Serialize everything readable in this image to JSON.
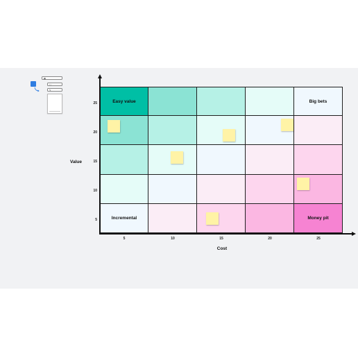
{
  "axes": {
    "x_label": "Cost",
    "y_label": "Value",
    "x_ticks": [
      "5",
      "10",
      "15",
      "20",
      "25"
    ],
    "y_ticks": [
      "25",
      "20",
      "15",
      "10",
      "5"
    ]
  },
  "matrix": {
    "rows": [
      [
        {
          "label": "Easy value",
          "color": "#00bfa5"
        },
        {
          "label": "",
          "color": "#8be3d4"
        },
        {
          "label": "",
          "color": "#b6f1e6"
        },
        {
          "label": "",
          "color": "#e5fcf8"
        },
        {
          "label": "Big bets",
          "color": "#f0f8fe"
        }
      ],
      [
        {
          "label": "",
          "color": "#8be3d4"
        },
        {
          "label": "",
          "color": "#b6f1e6"
        },
        {
          "label": "",
          "color": "#e5fcf8"
        },
        {
          "label": "",
          "color": "#f0f8fe"
        },
        {
          "label": "",
          "color": "#fbedf6"
        }
      ],
      [
        {
          "label": "",
          "color": "#b6f1e6"
        },
        {
          "label": "",
          "color": "#e5fcf8"
        },
        {
          "label": "",
          "color": "#f0f8fe"
        },
        {
          "label": "",
          "color": "#fbedf6"
        },
        {
          "label": "",
          "color": "#fdd6ee"
        }
      ],
      [
        {
          "label": "",
          "color": "#e5fcf8"
        },
        {
          "label": "",
          "color": "#f0f8fe"
        },
        {
          "label": "",
          "color": "#fbedf6"
        },
        {
          "label": "",
          "color": "#fdd6ee"
        },
        {
          "label": "",
          "color": "#fbb7e2"
        }
      ],
      [
        {
          "label": "Incremental",
          "color": "#f0f8fe"
        },
        {
          "label": "",
          "color": "#fbedf6"
        },
        {
          "label": "",
          "color": "#fdd6ee"
        },
        {
          "label": "",
          "color": "#fbb7e2"
        },
        {
          "label": "Money pit",
          "color": "#f683d2"
        }
      ]
    ]
  },
  "sticky_color": "#fff3a6",
  "tips": {
    "instruction_text": "",
    "buttons": [
      {
        "icon": "grid-icon",
        "label": ""
      },
      {
        "icon": "note-icon",
        "label": ""
      },
      {
        "icon": "pen-icon",
        "label": ""
      }
    ],
    "card_title": ""
  }
}
